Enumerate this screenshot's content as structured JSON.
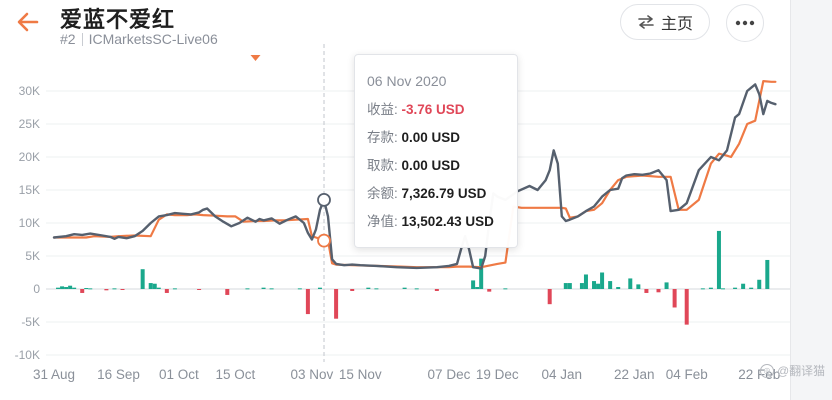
{
  "header": {
    "title": "爱蓝不爱红",
    "account_no": "#2",
    "server": "ICMarketsSC-Live06",
    "home_label": "主页",
    "back_icon": "arrow-left-icon",
    "swap_icon": "swap-arrows-icon",
    "more_icon": "more-dots-icon"
  },
  "colors": {
    "accent": "#ef7a45",
    "balance_line": "#ef7a45",
    "equity_line": "#56606e",
    "profit_bar": "#1aa88c",
    "loss_bar": "#e04758"
  },
  "tooltip": {
    "date": "06 Nov 2020",
    "rows": [
      {
        "label": "收益:",
        "value": "-3.76 USD"
      },
      {
        "label": "存款:",
        "value": "0.00 USD"
      },
      {
        "label": "取款:",
        "value": "0.00 USD"
      },
      {
        "label": "余额:",
        "value": "7,326.79 USD"
      },
      {
        "label": "净值:",
        "value": "13,502.43 USD"
      }
    ]
  },
  "watermark": "@翻译猫",
  "chart_data": {
    "type": "line",
    "ylim": [
      -10000,
      30000
    ],
    "y_ticks": [
      "30K",
      "25K",
      "20K",
      "15K",
      "10K",
      "5K",
      "0",
      "-5K",
      "-10K"
    ],
    "x_ticks": [
      "31 Aug",
      "16 Sep",
      "01 Oct",
      "15 Oct",
      "03 Nov",
      "15 Nov",
      "07 Dec",
      "19 Dec",
      "04 Jan",
      "22 Jan",
      "04 Feb",
      "22 Feb"
    ],
    "x_days": [
      0,
      16,
      31,
      45,
      64,
      76,
      98,
      110,
      126,
      144,
      157,
      175
    ],
    "cursor_day": 67,
    "series": [
      {
        "key": "equity",
        "x": [
          0,
          3,
          5,
          7,
          9,
          12,
          14,
          15,
          16,
          18,
          20,
          22,
          24,
          26,
          28,
          30,
          32,
          34,
          36,
          37,
          38,
          40,
          42,
          44,
          46,
          48,
          50,
          51,
          52,
          54,
          56,
          58,
          60,
          62,
          63,
          64,
          65,
          66,
          67,
          68,
          69,
          70,
          72,
          74,
          76,
          80,
          85,
          90,
          95,
          98,
          100,
          101,
          102,
          103,
          104,
          106,
          107,
          108,
          109,
          110,
          112,
          115,
          118,
          120,
          122,
          123,
          124,
          125,
          126,
          127,
          128,
          130,
          132,
          134,
          136,
          138,
          140,
          141,
          142,
          144,
          146,
          148,
          150,
          152,
          153,
          155,
          157,
          160,
          163,
          165,
          167,
          169,
          170,
          172,
          173,
          174,
          175,
          176,
          177,
          178,
          179
        ],
        "y": [
          7800,
          8000,
          8300,
          8200,
          8400,
          8100,
          7900,
          7600,
          7900,
          7700,
          8000,
          8800,
          10000,
          11000,
          11200,
          11500,
          11400,
          11300,
          11600,
          12000,
          12200,
          11000,
          10200,
          9500,
          10000,
          10800,
          10200,
          10600,
          10400,
          10700,
          9900,
          10500,
          11000,
          10000,
          8500,
          7500,
          9000,
          12000,
          13502,
          11000,
          4500,
          3800,
          3600,
          3700,
          3600,
          3500,
          3300,
          3200,
          3300,
          3500,
          3800,
          6000,
          8000,
          6000,
          3300,
          3100,
          5000,
          10000,
          14500,
          14000,
          13500,
          14800,
          15600,
          15000,
          16500,
          18000,
          21000,
          19000,
          11000,
          10300,
          10500,
          11000,
          11800,
          12500,
          14000,
          15000,
          15200,
          16800,
          17200,
          17400,
          17300,
          17500,
          18000,
          16500,
          11800,
          12000,
          13000,
          18000,
          20000,
          19500,
          21000,
          26000,
          26500,
          30000,
          30500,
          31000,
          29500,
          26500,
          28500,
          28200,
          28000
        ]
      },
      {
        "key": "balance",
        "x": [
          0,
          8,
          10,
          14,
          16,
          20,
          24,
          26,
          28,
          30,
          33,
          35,
          37,
          40,
          43,
          45,
          47,
          50,
          52,
          55,
          57,
          60,
          63,
          64,
          65,
          66,
          67,
          68,
          69,
          70,
          74,
          80,
          86,
          90,
          95,
          98,
          100,
          103,
          106,
          110,
          112,
          114,
          116,
          118,
          120,
          121,
          122,
          123,
          124,
          125,
          126,
          127,
          128,
          130,
          132,
          134,
          136,
          138,
          140,
          142,
          146,
          150,
          152,
          153,
          155,
          157,
          160,
          163,
          165,
          167,
          168,
          170,
          172,
          174,
          176,
          178,
          179
        ],
        "y": [
          7800,
          7800,
          8000,
          7900,
          8000,
          8100,
          8000,
          10500,
          11300,
          11200,
          11200,
          11300,
          11200,
          11100,
          11000,
          11000,
          10200,
          10300,
          10300,
          10400,
          10400,
          10500,
          10600,
          8000,
          7800,
          7600,
          7326,
          7326,
          3900,
          3700,
          3600,
          3500,
          3400,
          3300,
          3300,
          3300,
          3400,
          3400,
          3300,
          3800,
          4000,
          12500,
          12300,
          12300,
          12300,
          12300,
          12300,
          12300,
          12300,
          12300,
          12300,
          12200,
          10800,
          11000,
          11800,
          12000,
          13000,
          15000,
          16500,
          17000,
          17200,
          17000,
          17000,
          17000,
          12000,
          12000,
          13500,
          19000,
          20500,
          20200,
          20000,
          22000,
          25000,
          25500,
          31500,
          31400,
          31400
        ]
      },
      {
        "key": "profit",
        "x": [
          1,
          2,
          3,
          4,
          5,
          7,
          8,
          9,
          13,
          15,
          17,
          22,
          24,
          25,
          26,
          28,
          30,
          36,
          43,
          48,
          52,
          54,
          61,
          63,
          66,
          70,
          74,
          78,
          80,
          87,
          90,
          95,
          104,
          105,
          106,
          108,
          112,
          123,
          127,
          128,
          131,
          132,
          134,
          135,
          136,
          138,
          140,
          143,
          145,
          147,
          150,
          152,
          154,
          157,
          161,
          163,
          165,
          166,
          169,
          171,
          173,
          175,
          177
        ],
        "y": [
          200,
          400,
          300,
          500,
          200,
          -600,
          150,
          100,
          -200,
          100,
          -100,
          3000,
          900,
          800,
          200,
          -600,
          100,
          -100,
          -900,
          100,
          200,
          100,
          100,
          -3800,
          200,
          -4500,
          -300,
          200,
          100,
          200,
          100,
          -300,
          1300,
          300,
          4600,
          -400,
          100,
          -2300,
          900,
          900,
          900,
          2200,
          1200,
          800,
          2500,
          1200,
          300,
          1600,
          700,
          -600,
          -500,
          1000,
          -2800,
          -5400,
          100,
          200,
          8800,
          100,
          200,
          800,
          200,
          1400,
          4400
        ]
      }
    ]
  }
}
